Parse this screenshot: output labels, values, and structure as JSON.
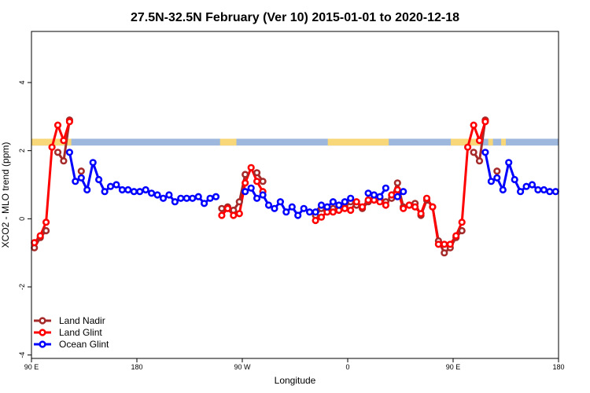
{
  "chart_data": {
    "type": "line",
    "title": "27.5N-32.5N February (Ver 10)   2015-01-01 to 2020-12-18",
    "xlabel": "Longitude",
    "ylabel": "XCO2 - MLO trend (ppm)",
    "xlim": [
      90,
      540
    ],
    "ylim": [
      -4.1,
      5.5
    ],
    "xticks": [
      {
        "value": 90,
        "label": "90 E"
      },
      {
        "value": 180,
        "label": "180"
      },
      {
        "value": 270,
        "label": "90 W"
      },
      {
        "value": 360,
        "label": "0"
      },
      {
        "value": 450,
        "label": "90 E"
      },
      {
        "value": 540,
        "label": "180"
      }
    ],
    "yticks": [
      {
        "value": -4,
        "label": "-4"
      },
      {
        "value": -2,
        "label": "-2"
      },
      {
        "value": 0,
        "label": "0"
      },
      {
        "value": 2,
        "label": "2"
      },
      {
        "value": 4,
        "label": "4"
      }
    ],
    "grid": false,
    "legend_position": "bottom-left",
    "surface_strip": {
      "y_range": [
        2.15,
        2.35
      ],
      "colors": {
        "ocean": "#9db8dc",
        "land": "#f7d778"
      },
      "land_x": [
        [
          90,
          124
        ],
        [
          251,
          265
        ],
        [
          343,
          395
        ],
        [
          448,
          473
        ],
        [
          480,
          484
        ],
        [
          491,
          495
        ]
      ]
    },
    "series": [
      {
        "name": "Land Nadir",
        "color": "#a52a2a",
        "points": [
          [
            92.5,
            -0.85
          ],
          [
            97.5,
            -0.55
          ],
          [
            102.5,
            -0.35
          ],
          [
            112.5,
            1.95
          ],
          [
            117.5,
            1.7
          ],
          [
            122.5,
            2.9
          ],
          [
            132.5,
            1.4
          ],
          [
            252.5,
            0.3
          ],
          [
            257.5,
            0.35
          ],
          [
            262.5,
            0.25
          ],
          [
            267.5,
            0.5
          ],
          [
            272.5,
            1.3
          ],
          [
            282.5,
            1.35
          ],
          [
            287.5,
            1.1
          ],
          [
            332.5,
            0.1
          ],
          [
            337.5,
            0.3
          ],
          [
            342.5,
            0.2
          ],
          [
            347.5,
            0.3
          ],
          [
            352.5,
            0.3
          ],
          [
            357.5,
            0.35
          ],
          [
            362.5,
            0.5
          ],
          [
            367.5,
            0.4
          ],
          [
            372.5,
            0.3
          ],
          [
            377.5,
            0.5
          ],
          [
            382.5,
            0.6
          ],
          [
            387.5,
            0.6
          ],
          [
            392.5,
            0.5
          ],
          [
            397.5,
            0.6
          ],
          [
            402.5,
            1.05
          ],
          [
            407.5,
            0.35
          ],
          [
            412.5,
            0.4
          ],
          [
            417.5,
            0.45
          ],
          [
            422.5,
            0.1
          ],
          [
            427.5,
            0.55
          ],
          [
            432.5,
            0.35
          ],
          [
            437.5,
            -0.65
          ],
          [
            442.5,
            -1.0
          ],
          [
            447.5,
            -0.85
          ],
          [
            452.5,
            -0.55
          ],
          [
            457.5,
            -0.35
          ],
          [
            467.5,
            1.95
          ],
          [
            472.5,
            1.7
          ],
          [
            477.5,
            2.9
          ],
          [
            487.5,
            1.4
          ]
        ]
      },
      {
        "name": "Land Glint",
        "color": "#ff0000",
        "points": [
          [
            92.5,
            -0.7
          ],
          [
            97.5,
            -0.5
          ],
          [
            102.5,
            -0.1
          ],
          [
            107.5,
            2.1
          ],
          [
            112.5,
            2.75
          ],
          [
            117.5,
            2.3
          ],
          [
            122.5,
            2.85
          ],
          [
            252.5,
            0.1
          ],
          [
            257.5,
            0.3
          ],
          [
            262.5,
            0.1
          ],
          [
            267.5,
            0.15
          ],
          [
            272.5,
            1.05
          ],
          [
            277.5,
            1.5
          ],
          [
            282.5,
            1.1
          ],
          [
            287.5,
            0.8
          ],
          [
            332.5,
            -0.05
          ],
          [
            337.5,
            0.05
          ],
          [
            342.5,
            0.2
          ],
          [
            347.5,
            0.2
          ],
          [
            352.5,
            0.25
          ],
          [
            357.5,
            0.3
          ],
          [
            362.5,
            0.25
          ],
          [
            367.5,
            0.5
          ],
          [
            372.5,
            0.35
          ],
          [
            377.5,
            0.55
          ],
          [
            382.5,
            0.55
          ],
          [
            387.5,
            0.5
          ],
          [
            392.5,
            0.4
          ],
          [
            397.5,
            0.7
          ],
          [
            402.5,
            0.85
          ],
          [
            407.5,
            0.3
          ],
          [
            412.5,
            0.4
          ],
          [
            417.5,
            0.35
          ],
          [
            422.5,
            0.15
          ],
          [
            427.5,
            0.6
          ],
          [
            432.5,
            0.35
          ],
          [
            437.5,
            -0.75
          ],
          [
            442.5,
            -0.75
          ],
          [
            447.5,
            -0.75
          ],
          [
            452.5,
            -0.5
          ],
          [
            457.5,
            -0.1
          ],
          [
            462.5,
            2.1
          ],
          [
            467.5,
            2.75
          ],
          [
            472.5,
            2.3
          ],
          [
            477.5,
            2.85
          ]
        ]
      },
      {
        "name": "Ocean Glint",
        "color": "#0000ff",
        "points": [
          [
            122.5,
            1.95
          ],
          [
            127.5,
            1.1
          ],
          [
            132.5,
            1.2
          ],
          [
            137.5,
            0.85
          ],
          [
            142.5,
            1.65
          ],
          [
            147.5,
            1.15
          ],
          [
            152.5,
            0.8
          ],
          [
            157.5,
            0.95
          ],
          [
            162.5,
            1.0
          ],
          [
            167.5,
            0.85
          ],
          [
            172.5,
            0.85
          ],
          [
            177.5,
            0.8
          ],
          [
            182.5,
            0.8
          ],
          [
            187.5,
            0.85
          ],
          [
            192.5,
            0.75
          ],
          [
            197.5,
            0.7
          ],
          [
            202.5,
            0.6
          ],
          [
            207.5,
            0.7
          ],
          [
            212.5,
            0.5
          ],
          [
            217.5,
            0.6
          ],
          [
            222.5,
            0.6
          ],
          [
            227.5,
            0.6
          ],
          [
            232.5,
            0.65
          ],
          [
            237.5,
            0.45
          ],
          [
            242.5,
            0.6
          ],
          [
            247.5,
            0.65
          ],
          [
            272.5,
            0.8
          ],
          [
            277.5,
            0.9
          ],
          [
            282.5,
            0.6
          ],
          [
            287.5,
            0.7
          ],
          [
            292.5,
            0.4
          ],
          [
            297.5,
            0.3
          ],
          [
            302.5,
            0.5
          ],
          [
            307.5,
            0.2
          ],
          [
            312.5,
            0.35
          ],
          [
            317.5,
            0.1
          ],
          [
            322.5,
            0.3
          ],
          [
            327.5,
            0.2
          ],
          [
            332.5,
            0.2
          ],
          [
            337.5,
            0.4
          ],
          [
            342.5,
            0.35
          ],
          [
            347.5,
            0.5
          ],
          [
            352.5,
            0.4
          ],
          [
            357.5,
            0.5
          ],
          [
            362.5,
            0.6
          ],
          [
            377.5,
            0.75
          ],
          [
            382.5,
            0.7
          ],
          [
            387.5,
            0.65
          ],
          [
            392.5,
            0.9
          ],
          [
            402.5,
            0.65
          ],
          [
            407.5,
            0.8
          ],
          [
            477.5,
            1.95
          ],
          [
            482.5,
            1.1
          ],
          [
            487.5,
            1.2
          ],
          [
            492.5,
            0.85
          ],
          [
            497.5,
            1.65
          ],
          [
            502.5,
            1.15
          ],
          [
            507.5,
            0.8
          ],
          [
            512.5,
            0.95
          ],
          [
            517.5,
            1.0
          ],
          [
            522.5,
            0.85
          ],
          [
            527.5,
            0.85
          ],
          [
            532.5,
            0.8
          ],
          [
            537.5,
            0.8
          ]
        ]
      }
    ]
  }
}
